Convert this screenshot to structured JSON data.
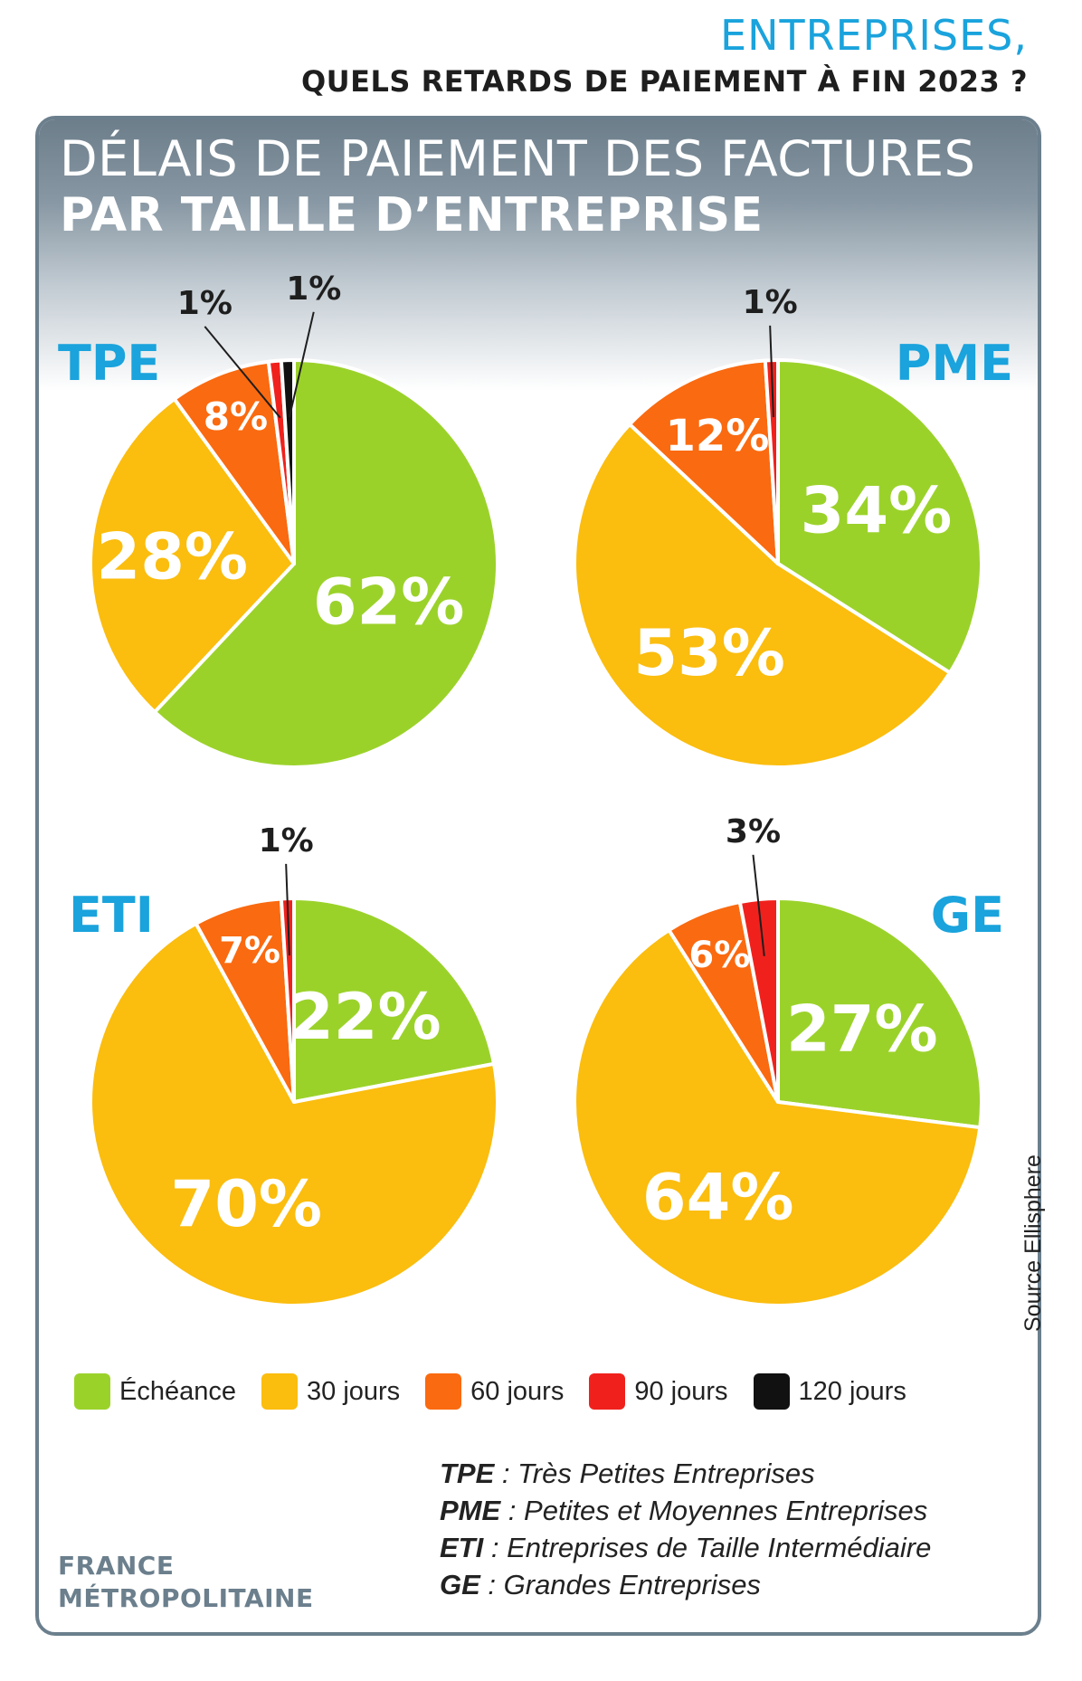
{
  "header": {
    "kicker": "ENTREPRISES,",
    "headline": "QUELS RETARDS DE PAIEMENT À FIN 2023 ?"
  },
  "card": {
    "title_line1": "DÉLAIS DE PAIEMENT DES FACTURES",
    "title_line2": "PAR TAILLE D’ENTREPRISE"
  },
  "colors": {
    "echeance": "#9bd22a",
    "j30": "#fbbd0e",
    "j60": "#fa6a10",
    "j90": "#f0211c",
    "j120": "#111111",
    "accent_blue": "#1aa3dc",
    "frame_gray": "#6b7f8d"
  },
  "chart_data": [
    {
      "type": "pie",
      "title": "TPE",
      "categories": [
        "Échéance",
        "30 jours",
        "60 jours",
        "90 jours",
        "120 jours"
      ],
      "values": [
        62,
        28,
        8,
        1,
        1
      ],
      "labels": [
        "62%",
        "28%",
        "8%",
        "1%",
        "1%"
      ]
    },
    {
      "type": "pie",
      "title": "PME",
      "categories": [
        "Échéance",
        "30 jours",
        "60 jours",
        "90 jours"
      ],
      "values": [
        34,
        53,
        12,
        1
      ],
      "labels": [
        "34%",
        "53%",
        "12%",
        "1%"
      ]
    },
    {
      "type": "pie",
      "title": "ETI",
      "categories": [
        "Échéance",
        "30 jours",
        "60 jours",
        "90 jours"
      ],
      "values": [
        22,
        70,
        7,
        1
      ],
      "labels": [
        "22%",
        "70%",
        "7%",
        "1%"
      ]
    },
    {
      "type": "pie",
      "title": "GE",
      "categories": [
        "Échéance",
        "30 jours",
        "60 jours",
        "90 jours"
      ],
      "values": [
        27,
        64,
        6,
        3
      ],
      "labels": [
        "27%",
        "64%",
        "6%",
        "3%"
      ]
    }
  ],
  "legend": [
    {
      "label": "Échéance",
      "color": "#9bd22a"
    },
    {
      "label": "30 jours",
      "color": "#fbbd0e"
    },
    {
      "label": "60 jours",
      "color": "#fa6a10"
    },
    {
      "label": "90 jours",
      "color": "#f0211c"
    },
    {
      "label": "120 jours",
      "color": "#111111"
    }
  ],
  "glossary": [
    {
      "abbr": "TPE",
      "text": " : Très Petites Entreprises"
    },
    {
      "abbr": "PME",
      "text": " : Petites et Moyennes Entreprises"
    },
    {
      "abbr": "ETI",
      "text": " : Entreprises de Taille Intermédiaire"
    },
    {
      "abbr": "GE",
      "text": " : Grandes Entreprises"
    }
  ],
  "region": {
    "line1": "FRANCE",
    "line2": "MÉTROPOLITAINE"
  },
  "source": "Source Ellisphere"
}
